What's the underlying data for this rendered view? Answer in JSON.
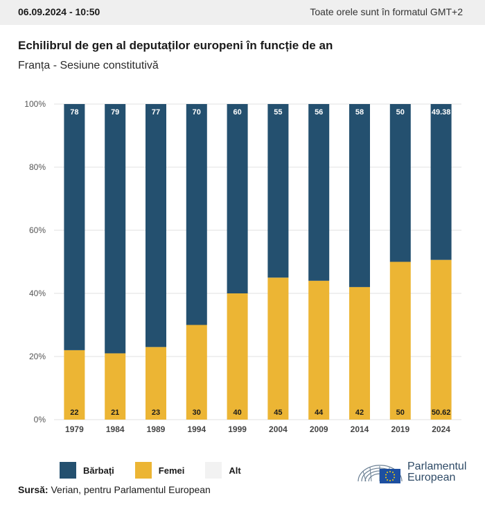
{
  "header": {
    "datetime": "06.09.2024 - 10:50",
    "timezone_note": "Toate orele sunt în formatul GMT+2"
  },
  "title": "Echilibrul de gen al deputaților europeni în funcție de an",
  "subtitle": "Franța - Sesiune constitutivă",
  "colors": {
    "barbati": "#24506f",
    "femei": "#ecb534",
    "alt": "#f2f2f2",
    "grid": "#e0e0e0"
  },
  "legend": [
    {
      "label": "Bărbați",
      "color": "#24506f"
    },
    {
      "label": "Femei",
      "color": "#ecb534"
    },
    {
      "label": "Alt",
      "color": "#f2f2f2"
    }
  ],
  "source": {
    "prefix": "Sursă:",
    "text": "Verian, pentru Parlamentul European"
  },
  "logo": {
    "line1": "Parlamentul",
    "line2": "European"
  },
  "chart_data": {
    "type": "bar",
    "stacked": true,
    "categories": [
      "1979",
      "1984",
      "1989",
      "1994",
      "1999",
      "2004",
      "2009",
      "2014",
      "2019",
      "2024"
    ],
    "series": [
      {
        "name": "Femei",
        "values": [
          22,
          21,
          23,
          30,
          40,
          45,
          44,
          42,
          50,
          50.62
        ],
        "labels": [
          "22",
          "21",
          "23",
          "30",
          "40",
          "45",
          "44",
          "42",
          "50",
          "50.62"
        ]
      },
      {
        "name": "Bărbați",
        "values": [
          78,
          79,
          77,
          70,
          60,
          55,
          56,
          58,
          50,
          49.38
        ],
        "labels": [
          "78",
          "79",
          "77",
          "70",
          "60",
          "55",
          "56",
          "58",
          "50",
          "49.38"
        ]
      }
    ],
    "ylim": [
      0,
      100
    ],
    "yticks": [
      "0%",
      "20%",
      "40%",
      "60%",
      "80%",
      "100%"
    ],
    "ytick_values": [
      0,
      20,
      40,
      60,
      80,
      100
    ],
    "grid": true
  }
}
